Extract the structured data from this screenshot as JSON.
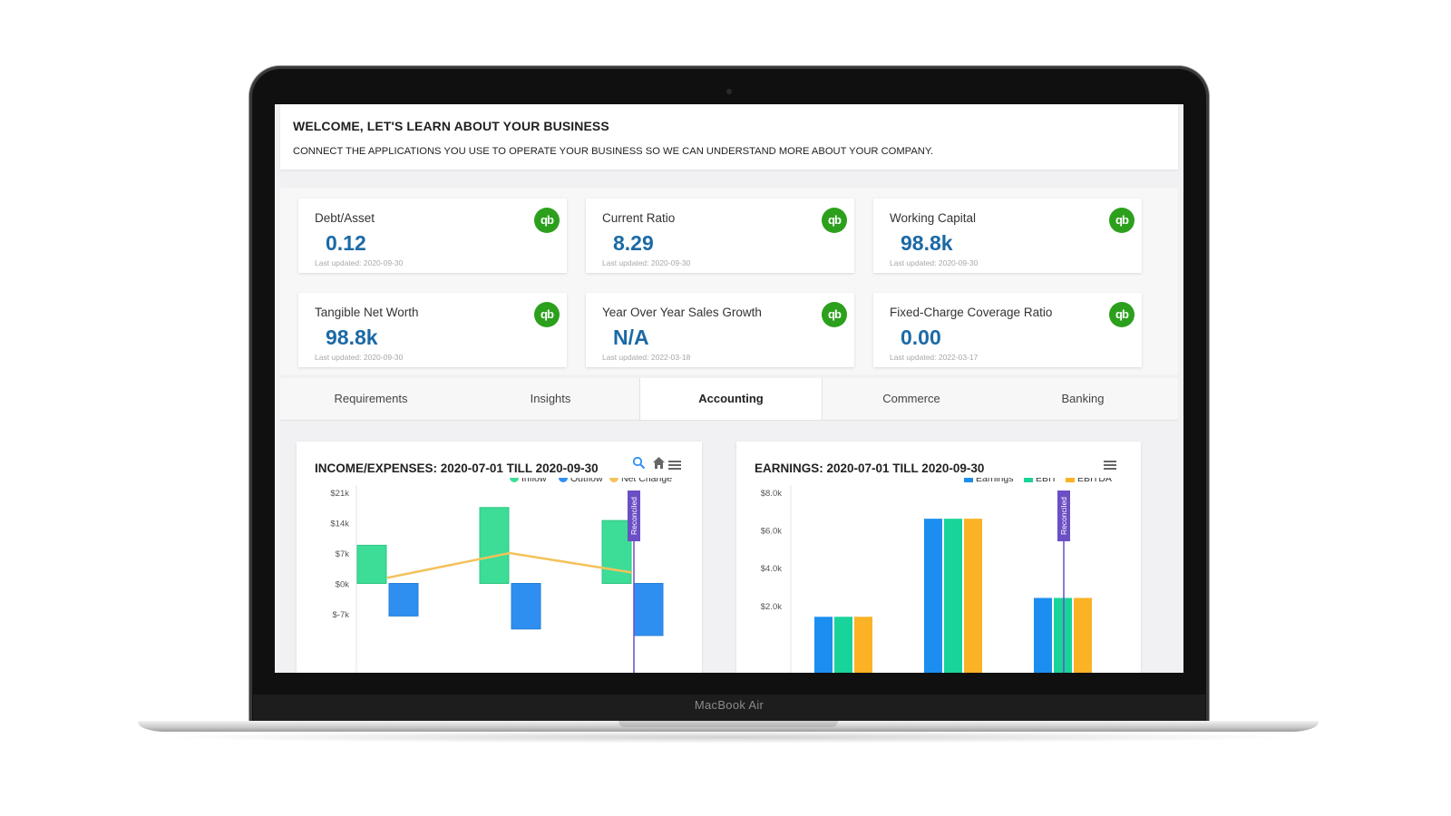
{
  "device": {
    "brand": "MacBook Air"
  },
  "welcome": {
    "title": "WELCOME, LET'S LEARN ABOUT YOUR BUSINESS",
    "subtitle": "CONNECT THE APPLICATIONS YOU USE TO OPERATE YOUR BUSINESS SO WE CAN UNDERSTAND MORE ABOUT YOUR COMPANY."
  },
  "metrics": [
    {
      "label": "Debt/Asset",
      "value": "0.12",
      "updated": "Last updated: 2020-09-30",
      "icon": "qb"
    },
    {
      "label": "Current Ratio",
      "value": "8.29",
      "updated": "Last updated: 2020-09-30",
      "icon": "qb"
    },
    {
      "label": "Working Capital",
      "value": "98.8k",
      "updated": "Last updated: 2020-09-30",
      "icon": "qb"
    },
    {
      "label": "Tangible Net Worth",
      "value": "98.8k",
      "updated": "Last updated: 2020-09-30",
      "icon": "qb"
    },
    {
      "label": "Year Over Year Sales Growth",
      "value": "N/A",
      "updated": "Last updated: 2022-03-18",
      "icon": "qb"
    },
    {
      "label": "Fixed-Charge Coverage Ratio",
      "value": "0.00",
      "updated": "Last updated: 2022-03-17",
      "icon": "qb"
    }
  ],
  "tabs": [
    {
      "label": "Requirements",
      "active": false
    },
    {
      "label": "Insights",
      "active": false
    },
    {
      "label": "Accounting",
      "active": true
    },
    {
      "label": "Commerce",
      "active": false
    },
    {
      "label": "Banking",
      "active": false
    }
  ],
  "colors": {
    "inflow": "#3ddc97",
    "outflow": "#2f8ff0",
    "net": "#f3c25a",
    "earnings": "#1c8ef0",
    "ebit": "#19d49a",
    "ebitda": "#fbb224",
    "marker": "#6b4fc4",
    "value": "#1b6aa5",
    "qb": "#2ca01c"
  },
  "chart_data": [
    {
      "type": "bar",
      "title": "INCOME/EXPENSES: 2020-07-01 TILL 2020-09-30",
      "legend": [
        "Inflow",
        "Outflow",
        "Net Change"
      ],
      "legend_position": "top-right",
      "y_ticks": [
        "$21k",
        "$14k",
        "$7k",
        "$0k",
        "$-7k"
      ],
      "ylim": [
        -14000,
        21000
      ],
      "marker_label": "Reconciled",
      "series": [
        {
          "name": "Inflow",
          "values": [
            8800,
            17500,
            14500
          ]
        },
        {
          "name": "Outflow",
          "values": [
            -7500,
            -10500,
            -12000
          ]
        },
        {
          "name": "Net Change",
          "values": [
            1300,
            7000,
            2500
          ]
        }
      ]
    },
    {
      "type": "bar",
      "title": "EARNINGS: 2020-07-01 TILL 2020-09-30",
      "legend": [
        "Earnings",
        "EBIT",
        "EBITDA"
      ],
      "legend_position": "top-right",
      "y_ticks": [
        "$8.0k",
        "$6.0k",
        "$4.0k",
        "$2.0k"
      ],
      "ylim": [
        0,
        8000
      ],
      "marker_label": "Reconciled",
      "series": [
        {
          "name": "Earnings",
          "values": [
            1400,
            6600,
            2400
          ]
        },
        {
          "name": "EBIT",
          "values": [
            1400,
            6600,
            2400
          ]
        },
        {
          "name": "EBITDA",
          "values": [
            1400,
            6600,
            2400
          ]
        }
      ]
    }
  ]
}
